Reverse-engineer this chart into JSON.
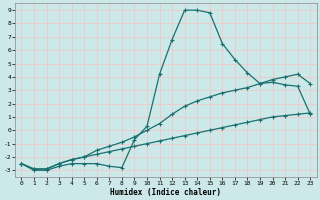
{
  "xlabel": "Humidex (Indice chaleur)",
  "bg_color": "#cce8e8",
  "grid_color": "#f0c8c8",
  "line_color": "#1a7070",
  "xlim": [
    -0.5,
    23.5
  ],
  "ylim": [
    -3.5,
    9.5
  ],
  "yticks": [
    -3,
    -2,
    -1,
    0,
    1,
    2,
    3,
    4,
    5,
    6,
    7,
    8,
    9
  ],
  "xticks": [
    0,
    1,
    2,
    3,
    4,
    5,
    6,
    7,
    8,
    9,
    10,
    11,
    12,
    13,
    14,
    15,
    16,
    17,
    18,
    19,
    20,
    21,
    22,
    23
  ],
  "series1_x": [
    0,
    1,
    2,
    3,
    4,
    5,
    6,
    7,
    8,
    9,
    10,
    11,
    12,
    13,
    14,
    15,
    16,
    17,
    18,
    19,
    20,
    21,
    22,
    23
  ],
  "series1_y": [
    -2.5,
    -3.0,
    -3.0,
    -2.7,
    -2.5,
    -2.5,
    -2.5,
    -2.7,
    -2.8,
    -0.7,
    0.3,
    4.2,
    6.8,
    9.0,
    9.0,
    8.8,
    6.5,
    5.3,
    4.3,
    3.5,
    3.6,
    3.4,
    3.3,
    1.2
  ],
  "series2_x": [
    0,
    1,
    2,
    3,
    4,
    5,
    6,
    7,
    8,
    9,
    10,
    11,
    12,
    13,
    14,
    15,
    16,
    17,
    18,
    19,
    20,
    21,
    22,
    23
  ],
  "series2_y": [
    -2.5,
    -2.9,
    -2.9,
    -2.5,
    -2.2,
    -2.0,
    -1.5,
    -1.2,
    -0.9,
    -0.5,
    0.0,
    0.5,
    1.2,
    1.8,
    2.2,
    2.5,
    2.8,
    3.0,
    3.2,
    3.5,
    3.8,
    4.0,
    4.2,
    3.5
  ],
  "series3_x": [
    0,
    1,
    2,
    3,
    4,
    5,
    6,
    7,
    8,
    9,
    10,
    11,
    12,
    13,
    14,
    15,
    16,
    17,
    18,
    19,
    20,
    21,
    22,
    23
  ],
  "series3_y": [
    -2.5,
    -2.9,
    -2.9,
    -2.5,
    -2.2,
    -2.0,
    -1.8,
    -1.6,
    -1.4,
    -1.2,
    -1.0,
    -0.8,
    -0.6,
    -0.4,
    -0.2,
    0.0,
    0.2,
    0.4,
    0.6,
    0.8,
    1.0,
    1.1,
    1.2,
    1.3
  ]
}
